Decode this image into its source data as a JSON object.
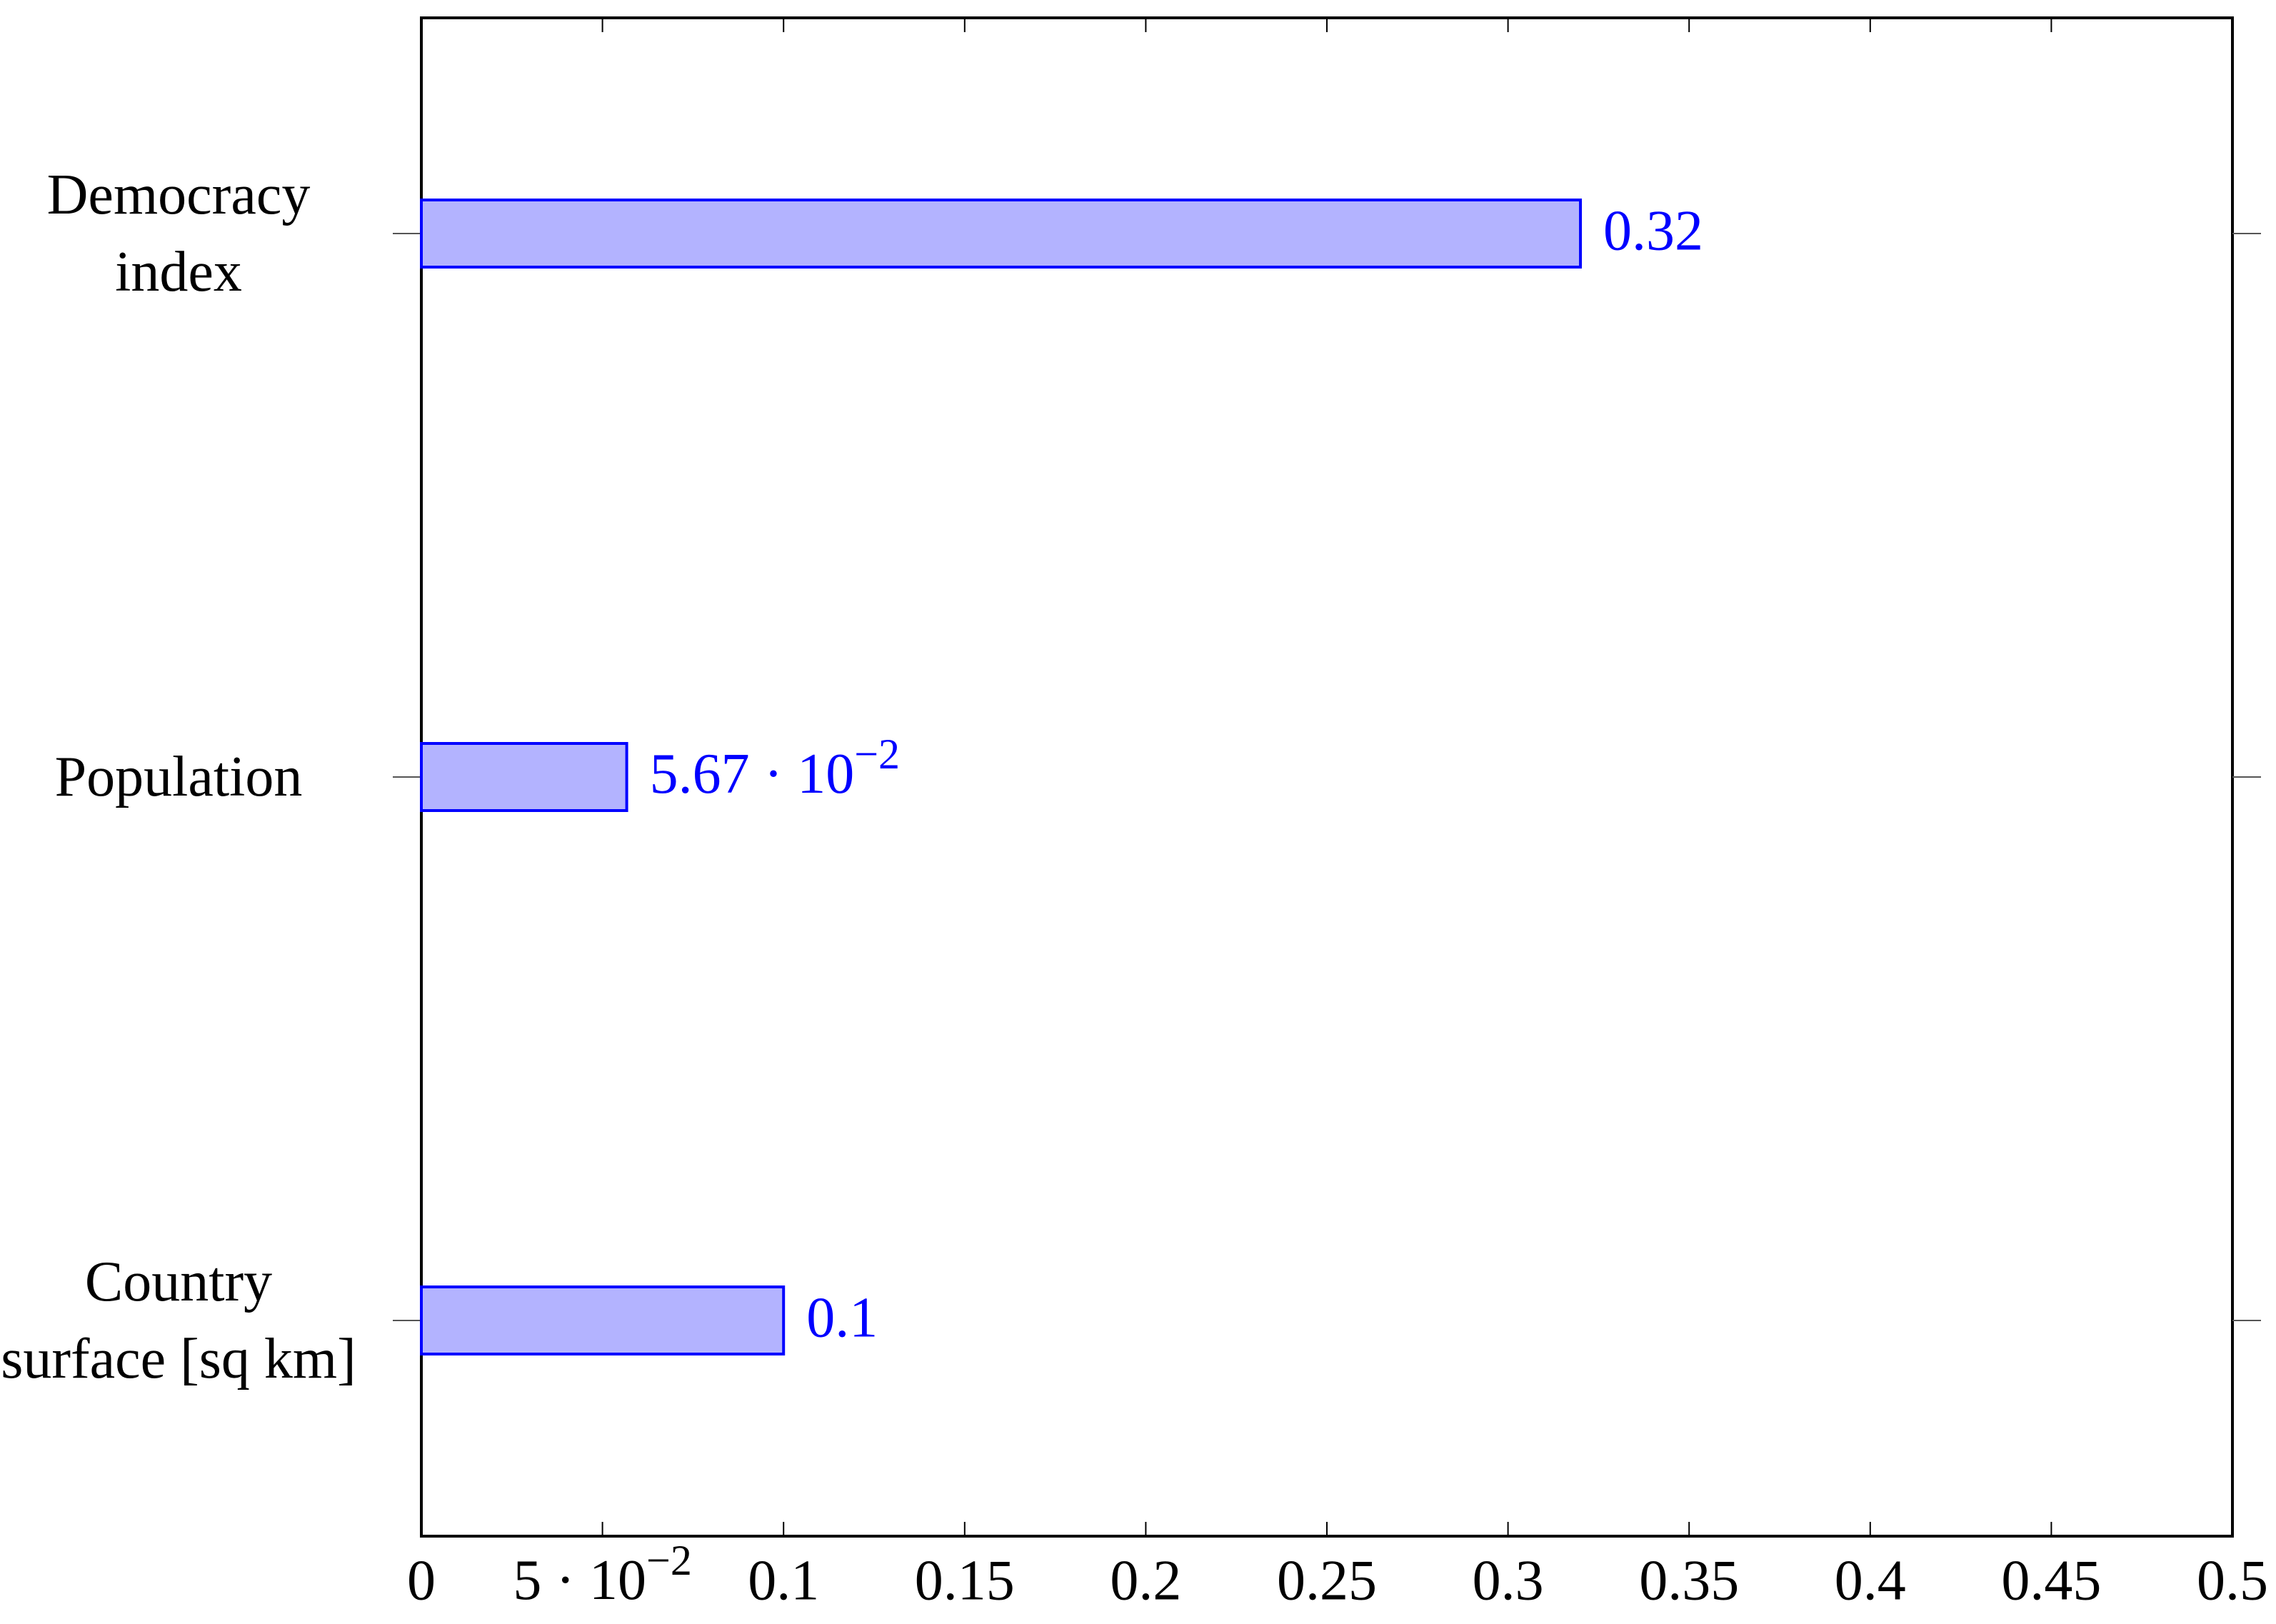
{
  "chart_data": {
    "type": "hbar",
    "categories": [
      "Democracy index",
      "Population",
      "Country surface [sq km]"
    ],
    "values": [
      0.32,
      0.0567,
      0.1
    ],
    "value_labels": [
      "0.32",
      "5.67 · 10−2",
      "0.1"
    ],
    "color": "#b3b3ff",
    "edge_color": "#0000ff",
    "label_color": "#0000ff",
    "xlim": [
      0,
      0.5
    ],
    "xticks": [
      0,
      {
        "value": 0.05,
        "label": "5 · 10−2"
      },
      0.1,
      0.15,
      0.2,
      0.25,
      0.3,
      0.35,
      0.4,
      0.45,
      0.5
    ]
  }
}
